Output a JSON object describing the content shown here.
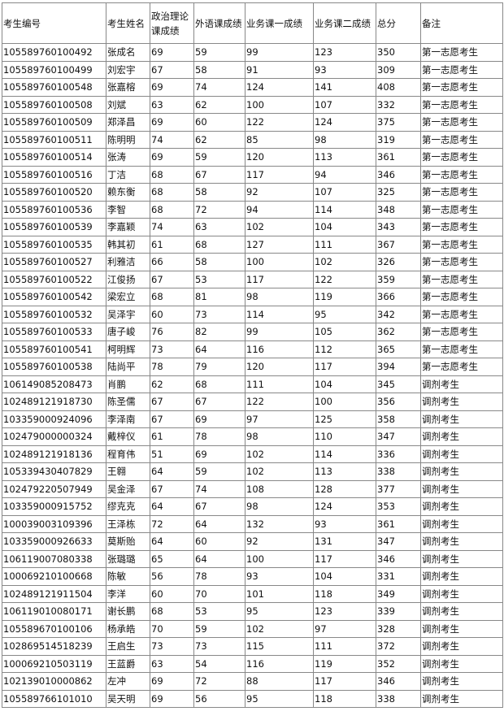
{
  "table": {
    "headers": [
      "考生编号",
      "考生姓名",
      "政治理论课成绩",
      "外语课成绩",
      "业务课一成绩",
      "业务课二成绩",
      "总分",
      "备注"
    ],
    "rows": [
      [
        "105589760100492",
        "张成名",
        "69",
        "59",
        "99",
        "123",
        "350",
        "第一志愿考生"
      ],
      [
        "105589760100499",
        "刘宏宇",
        "67",
        "58",
        "91",
        "93",
        "309",
        "第一志愿考生"
      ],
      [
        "105589760100548",
        "张嘉榕",
        "69",
        "74",
        "124",
        "141",
        "408",
        "第一志愿考生"
      ],
      [
        "105589760100508",
        "刘斌",
        "63",
        "62",
        "100",
        "107",
        "332",
        "第一志愿考生"
      ],
      [
        "105589760100509",
        "郑泽昌",
        "69",
        "60",
        "122",
        "124",
        "375",
        "第一志愿考生"
      ],
      [
        "105589760100511",
        "陈明明",
        "74",
        "62",
        "85",
        "98",
        "319",
        "第一志愿考生"
      ],
      [
        "105589760100514",
        "张涛",
        "69",
        "59",
        "120",
        "113",
        "361",
        "第一志愿考生"
      ],
      [
        "105589760100516",
        "丁洁",
        "68",
        "67",
        "117",
        "94",
        "346",
        "第一志愿考生"
      ],
      [
        "105589760100520",
        "赖东衡",
        "68",
        "58",
        "92",
        "107",
        "325",
        "第一志愿考生"
      ],
      [
        "105589760100536",
        "李智",
        "68",
        "72",
        "94",
        "114",
        "348",
        "第一志愿考生"
      ],
      [
        "105589760100539",
        "李嘉颖",
        "74",
        "63",
        "102",
        "104",
        "343",
        "第一志愿考生"
      ],
      [
        "105589760100535",
        "韩其初",
        "61",
        "68",
        "127",
        "111",
        "367",
        "第一志愿考生"
      ],
      [
        "105589760100527",
        "利雅洁",
        "66",
        "58",
        "100",
        "102",
        "326",
        "第一志愿考生"
      ],
      [
        "105589760100522",
        "江俊扬",
        "67",
        "53",
        "117",
        "122",
        "359",
        "第一志愿考生"
      ],
      [
        "105589760100542",
        "梁宏立",
        "68",
        "81",
        "98",
        "119",
        "366",
        "第一志愿考生"
      ],
      [
        "105589760100532",
        "吴泽宇",
        "60",
        "73",
        "114",
        "95",
        "342",
        "第一志愿考生"
      ],
      [
        "105589760100533",
        "唐子峻",
        "76",
        "82",
        "99",
        "105",
        "362",
        "第一志愿考生"
      ],
      [
        "105589760100541",
        "柯明辉",
        "73",
        "64",
        "116",
        "112",
        "365",
        "第一志愿考生"
      ],
      [
        "105589760100538",
        "陆尚平",
        "78",
        "79",
        "120",
        "117",
        "394",
        "第一志愿考生"
      ],
      [
        "106149085208473",
        "肖鹏",
        "62",
        "68",
        "111",
        "104",
        "345",
        "调剂考生"
      ],
      [
        "102489121918730",
        "陈圣儒",
        "67",
        "67",
        "122",
        "100",
        "356",
        "调剂考生"
      ],
      [
        "103359000924096",
        "李泽南",
        "67",
        "69",
        "97",
        "125",
        "358",
        "调剂考生"
      ],
      [
        "102479000000324",
        "戴梓仪",
        "61",
        "78",
        "98",
        "110",
        "347",
        "调剂考生"
      ],
      [
        "102489121918136",
        "程育伟",
        "51",
        "69",
        "102",
        "114",
        "336",
        "调剂考生"
      ],
      [
        "105339430407829",
        "王翱",
        "64",
        "59",
        "102",
        "113",
        "338",
        "调剂考生"
      ],
      [
        "102479220507949",
        "吴金泽",
        "67",
        "74",
        "108",
        "128",
        "377",
        "调剂考生"
      ],
      [
        "103359000915752",
        "缪克克",
        "64",
        "67",
        "98",
        "124",
        "353",
        "调剂考生"
      ],
      [
        "100039003109396",
        "王泽栋",
        "72",
        "64",
        "132",
        "93",
        "361",
        "调剂考生"
      ],
      [
        "103359000926633",
        "莫斯贻",
        "64",
        "60",
        "92",
        "131",
        "347",
        "调剂考生"
      ],
      [
        "106119007080338",
        "张璐璐",
        "65",
        "64",
        "100",
        "117",
        "346",
        "调剂考生"
      ],
      [
        "100069210100668",
        "陈敏",
        "56",
        "78",
        "93",
        "104",
        "331",
        "调剂考生"
      ],
      [
        "102489121911504",
        "李洋",
        "60",
        "70",
        "101",
        "118",
        "349",
        "调剂考生"
      ],
      [
        "106119010080171",
        "谢长鹏",
        "68",
        "53",
        "95",
        "123",
        "339",
        "调剂考生"
      ],
      [
        "105589670100106",
        "杨承皓",
        "70",
        "59",
        "102",
        "97",
        "328",
        "调剂考生"
      ],
      [
        "102869514518239",
        "王启生",
        "73",
        "73",
        "115",
        "111",
        "372",
        "调剂考生"
      ],
      [
        "100069210503119",
        "王蓝爵",
        "63",
        "54",
        "116",
        "119",
        "352",
        "调剂考生"
      ],
      [
        "102139010000862",
        "左冲",
        "69",
        "72",
        "88",
        "117",
        "346",
        "调剂考生"
      ],
      [
        "105589766101010",
        "吴天明",
        "69",
        "56",
        "95",
        "118",
        "338",
        "调剂考生"
      ]
    ]
  }
}
